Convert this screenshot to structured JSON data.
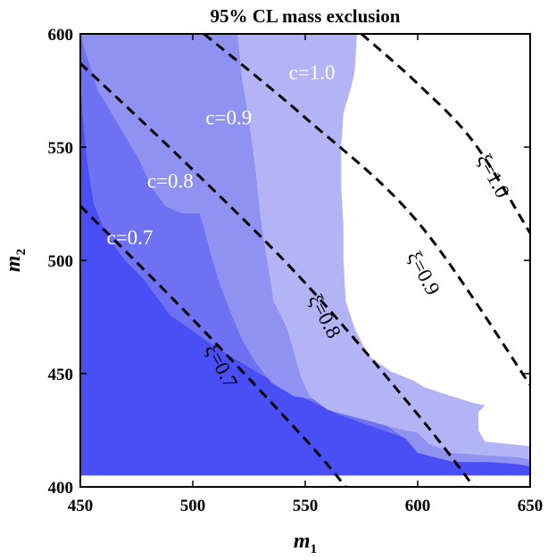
{
  "chart_data": {
    "type": "contour",
    "title": "95% CL mass exclusion",
    "xlabel": "m",
    "xlabel_sub": "1",
    "ylabel": "m",
    "ylabel_sub": "2",
    "xlim": [
      450,
      650
    ],
    "ylim": [
      400,
      600
    ],
    "xticks": [
      450,
      500,
      550,
      600,
      650
    ],
    "yticks": [
      400,
      450,
      500,
      550,
      600
    ],
    "colors": {
      "c07": "#4a4ef5",
      "c08": "#6e72f2",
      "c09": "#8f92f0",
      "c10": "#b2b4f5",
      "background": "#ffffff",
      "frame": "#000000"
    },
    "regions": [
      {
        "name": "c07",
        "polygon": [
          [
            450,
            405
          ],
          [
            650,
            405
          ],
          [
            650,
            414
          ],
          [
            628,
            415
          ],
          [
            605,
            418
          ],
          [
            585,
            425
          ],
          [
            565,
            432
          ],
          [
            548,
            440
          ],
          [
            530,
            450
          ],
          [
            510,
            462
          ],
          [
            490,
            476
          ],
          [
            478,
            492
          ],
          [
            470,
            500
          ],
          [
            462,
            511
          ],
          [
            456,
            525
          ],
          [
            453,
            545
          ],
          [
            451,
            565
          ],
          [
            450,
            583
          ]
        ]
      },
      {
        "name": "c08",
        "polygon": [
          [
            450,
            583
          ],
          [
            451,
            565
          ],
          [
            453,
            545
          ],
          [
            456,
            525
          ],
          [
            462,
            511
          ],
          [
            470,
            500
          ],
          [
            478,
            492
          ],
          [
            490,
            476
          ],
          [
            510,
            462
          ],
          [
            530,
            450
          ],
          [
            548,
            440
          ],
          [
            565,
            432
          ],
          [
            585,
            425
          ],
          [
            605,
            418
          ],
          [
            628,
            415
          ],
          [
            650,
            414
          ],
          [
            650,
            405
          ],
          [
            650,
            409
          ],
          [
            645,
            410
          ],
          [
            632,
            411
          ],
          [
            622,
            411
          ],
          [
            616,
            411
          ],
          [
            608,
            413
          ],
          [
            600,
            415
          ],
          [
            595,
            421
          ],
          [
            585,
            428
          ],
          [
            575,
            433
          ],
          [
            560,
            438
          ],
          [
            545,
            440
          ],
          [
            535,
            446
          ],
          [
            528,
            455
          ],
          [
            522,
            465
          ],
          [
            517,
            477
          ],
          [
            512,
            490
          ],
          [
            508,
            503
          ],
          [
            505,
            515
          ],
          [
            503,
            521
          ],
          [
            495,
            521
          ],
          [
            488,
            524
          ],
          [
            482,
            532
          ],
          [
            476,
            545
          ],
          [
            467,
            560
          ],
          [
            458,
            575
          ],
          [
            453,
            590
          ],
          [
            450,
            600
          ]
        ]
      },
      {
        "name": "c09",
        "polygon": [
          [
            450,
            600
          ],
          [
            453,
            590
          ],
          [
            458,
            575
          ],
          [
            467,
            560
          ],
          [
            476,
            545
          ],
          [
            482,
            532
          ],
          [
            488,
            524
          ],
          [
            495,
            521
          ],
          [
            503,
            521
          ],
          [
            505,
            515
          ],
          [
            508,
            503
          ],
          [
            512,
            490
          ],
          [
            517,
            477
          ],
          [
            522,
            465
          ],
          [
            528,
            455
          ],
          [
            535,
            446
          ],
          [
            545,
            440
          ],
          [
            560,
            438
          ],
          [
            575,
            433
          ],
          [
            585,
            428
          ],
          [
            595,
            421
          ],
          [
            600,
            415
          ],
          [
            608,
            413
          ],
          [
            616,
            411
          ],
          [
            622,
            411
          ],
          [
            632,
            411
          ],
          [
            645,
            410
          ],
          [
            650,
            409
          ],
          [
            650,
            412
          ],
          [
            645,
            413
          ],
          [
            628,
            414
          ],
          [
            615,
            415
          ],
          [
            605,
            419
          ],
          [
            600,
            424
          ],
          [
            590,
            426
          ],
          [
            575,
            430
          ],
          [
            560,
            434
          ],
          [
            552,
            440
          ],
          [
            548,
            449
          ],
          [
            542,
            470
          ],
          [
            536,
            482
          ],
          [
            534,
            495
          ],
          [
            532,
            507
          ],
          [
            530,
            520
          ],
          [
            528,
            540
          ],
          [
            526,
            555
          ],
          [
            524,
            568
          ],
          [
            522,
            580
          ],
          [
            521,
            590
          ],
          [
            520,
            600
          ]
        ]
      },
      {
        "name": "c10",
        "polygon": [
          [
            520,
            600
          ],
          [
            521,
            590
          ],
          [
            522,
            580
          ],
          [
            524,
            568
          ],
          [
            526,
            555
          ],
          [
            528,
            540
          ],
          [
            530,
            520
          ],
          [
            532,
            507
          ],
          [
            534,
            495
          ],
          [
            536,
            482
          ],
          [
            542,
            470
          ],
          [
            548,
            449
          ],
          [
            552,
            440
          ],
          [
            560,
            434
          ],
          [
            575,
            430
          ],
          [
            590,
            426
          ],
          [
            600,
            424
          ],
          [
            605,
            419
          ],
          [
            615,
            415
          ],
          [
            628,
            414
          ],
          [
            645,
            413
          ],
          [
            650,
            412
          ],
          [
            650,
            418
          ],
          [
            640,
            419
          ],
          [
            630,
            420
          ],
          [
            627,
            425
          ],
          [
            627,
            433
          ],
          [
            630,
            436
          ],
          [
            625,
            437
          ],
          [
            612,
            441
          ],
          [
            603,
            444
          ],
          [
            598,
            447
          ],
          [
            588,
            451
          ],
          [
            578,
            458
          ],
          [
            572,
            470
          ],
          [
            568,
            482
          ],
          [
            567,
            500
          ],
          [
            567,
            515
          ],
          [
            566,
            532
          ],
          [
            566,
            550
          ],
          [
            567,
            565
          ],
          [
            570,
            575
          ],
          [
            572,
            583
          ],
          [
            573,
            600
          ]
        ]
      }
    ],
    "contour_labels": [
      {
        "text": "c=0.7",
        "x": 472,
        "y": 507
      },
      {
        "text": "c=0.8",
        "x": 490,
        "y": 532
      },
      {
        "text": "c=0.9",
        "x": 516,
        "y": 560
      },
      {
        "text": "c=1.0",
        "x": 553,
        "y": 580
      }
    ],
    "xi_curves": [
      {
        "label": "ξ=0.7",
        "label_x": 510,
        "label_y": 452,
        "label_angle": 62,
        "points": [
          [
            450,
            524
          ],
          [
            500,
            474
          ],
          [
            550,
            421
          ],
          [
            568,
            400
          ]
        ]
      },
      {
        "label": "ξ=0.8",
        "label_x": 556,
        "label_y": 474,
        "label_angle": 62,
        "points": [
          [
            450,
            587
          ],
          [
            500,
            540
          ],
          [
            550,
            490
          ],
          [
            600,
            432
          ],
          [
            625,
            400
          ]
        ]
      },
      {
        "label": "ξ=0.9",
        "label_x": 600,
        "label_y": 493,
        "label_angle": 62,
        "points": [
          [
            505,
            600
          ],
          [
            550,
            563
          ],
          [
            600,
            517
          ],
          [
            650,
            445
          ]
        ]
      },
      {
        "label": "ξ=1.0",
        "label_x": 631,
        "label_y": 536,
        "label_angle": 62,
        "points": [
          [
            575,
            600
          ],
          [
            600,
            578
          ],
          [
            625,
            552
          ],
          [
            650,
            512
          ]
        ]
      }
    ]
  }
}
